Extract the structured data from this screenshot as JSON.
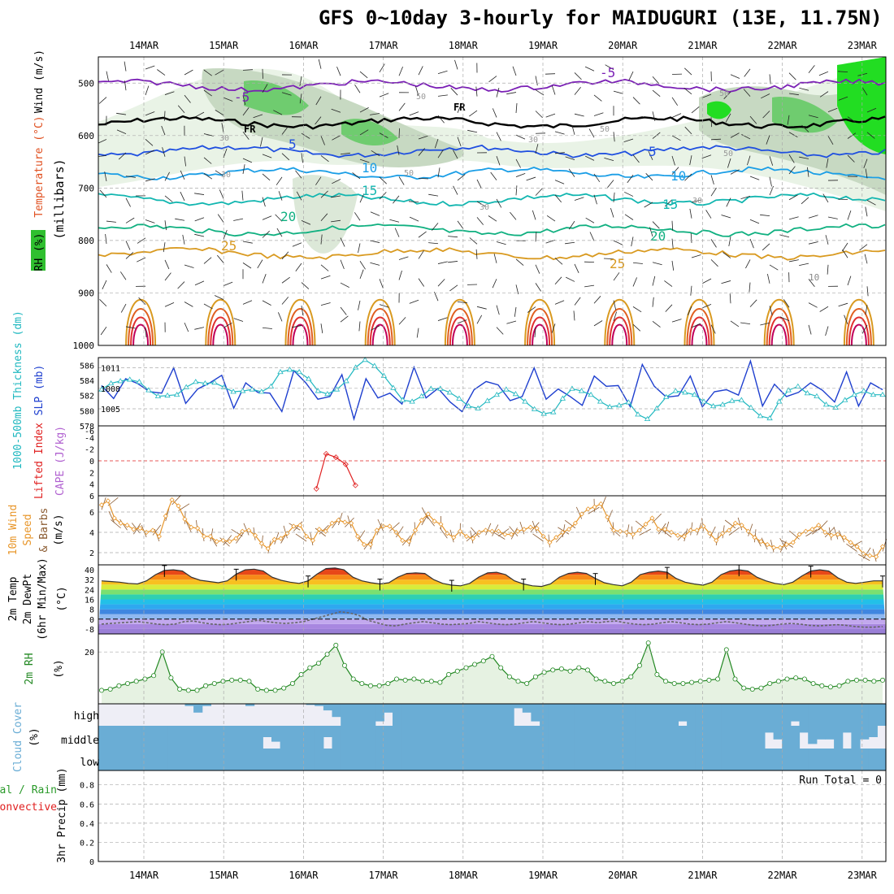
{
  "title": "GFS 0~10day 3-hourly for MAIDUGURI (13E, 11.75N)",
  "dates": [
    "14MAR",
    "15MAR",
    "16MAR",
    "17MAR",
    "18MAR",
    "19MAR",
    "20MAR",
    "21MAR",
    "22MAR",
    "23MAR"
  ],
  "panel_labels": {
    "p1_wind": "Wind (m/s)",
    "p1_temp": "Temperature (°C)",
    "p1_rh": "RH (%)",
    "p1_mb": "(millibars)",
    "p2_thick": "1000-500mb Thickness (dm)",
    "p2_slp": "SLP (mb)",
    "p3_li": "Lifted Index",
    "p3_cape": "CAPE (J/kg)",
    "p4_10m": "10m Wind",
    "p4_speed": "Speed",
    "p4_barbs": "& Barbs",
    "p4_unit": "(m/s)",
    "p5_temp": "2m Temp",
    "p5_dew": "2m DewPt",
    "p5_minmax": "(6hr Min/Max)",
    "p5_unit": "(°C)",
    "p6_rh": "2m RH",
    "p6_unit": "(%)",
    "p7_cloud": "Cloud Cover",
    "p7_unit": "(%)",
    "p8_total": "Total / Rain",
    "p8_conv": "Convective",
    "p8_precip": "3hr Precip (mm)"
  },
  "cloud_levels": [
    "high",
    "middle",
    "low"
  ],
  "run_total": "Run Total = 0",
  "colors": {
    "slp": "#1e3fcf",
    "thickness": "#20b8c0",
    "wind_speed": "#e8962a",
    "rh2m": "#228822",
    "rh_fill": "#e6f2e2",
    "cloud": "#6aadd5",
    "cloud_bg": "#eeeef6",
    "lifted_index": "#e02020",
    "temp_line": "#555555"
  },
  "chart_data": [
    {
      "type": "contour",
      "name": "vertical cross-section",
      "y_axis": {
        "label": "millibars",
        "ticks": [
          500,
          600,
          700,
          800,
          900,
          1000
        ],
        "range": [
          450,
          1000
        ]
      },
      "temperature_labels": [
        "-5",
        "-5",
        "5",
        "5",
        "10",
        "10",
        "15",
        "15",
        "20",
        "20",
        "25",
        "25",
        "10"
      ],
      "rh_labels": [
        "50",
        "50",
        "50",
        "50",
        "50",
        "30",
        "30",
        "30",
        "30",
        "30"
      ],
      "freezing_label": "FR",
      "isotherm_levels_mb": {
        "-5": 505,
        "0": 575,
        "5": 630,
        "10": 672,
        "15": 722,
        "20": 780,
        "25": 825
      }
    },
    {
      "type": "line",
      "name": "SLP and thickness",
      "thickness_axis": {
        "label": "1000-500mb Thickness (dm)",
        "ticks": [
          578,
          580,
          582,
          584,
          586
        ],
        "range": [
          578,
          587
        ]
      },
      "slp_axis": {
        "label": "SLP (mb)",
        "ticks": [
          1005,
          1008,
          1011
        ],
        "range": [
          1002.5,
          1012.5
        ]
      },
      "thickness": [
        582.8,
        583.6,
        583.9,
        584.1,
        583.8,
        582.7,
        581.9,
        582.0,
        582.1,
        583.1,
        583.8,
        583.6,
        583.7,
        583.1,
        582.5,
        582.6,
        582.8,
        582.5,
        583.2,
        585.1,
        585.4,
        585.1,
        584.2,
        582.6,
        582.2,
        582.8,
        583.9,
        585.7,
        586.7,
        585.9,
        584.6,
        583.0,
        581.4,
        581.2,
        581.9,
        582.9,
        582.9,
        582.4,
        581.6,
        580.6,
        580.3,
        581.3,
        582.1,
        582.8,
        582.2,
        581.2,
        580.2,
        579.6,
        579.8,
        581.6,
        582.9,
        582.6,
        582.1,
        581.2,
        580.5,
        580.7,
        581.1,
        579.5,
        578.9,
        580.3,
        581.8,
        582.6,
        582.4,
        582.1,
        581.2,
        580.6,
        580.8,
        581.3,
        581.4,
        580.4,
        579.3,
        579.0,
        581.2,
        582.7,
        583.2,
        582.3,
        581.9,
        580.8,
        580.4,
        581.4,
        582.1,
        582.6,
        582.1,
        582.1
      ],
      "slp": [
        1008.4,
        1006.5,
        1009.4,
        1008.7,
        1007.5,
        1007.3,
        1011.0,
        1005.8,
        1007.9,
        1008.8,
        1009.9,
        1005.1,
        1008.8,
        1007.4,
        1007.3,
        1004.6,
        1010.6,
        1008.8,
        1006.4,
        1006.8,
        1010.0,
        1003.5,
        1009.4,
        1006.6,
        1007.3,
        1005.7,
        1011.1,
        1006.6,
        1008.0,
        1006.0,
        1004.6,
        1007.8,
        1009.0,
        1008.5,
        1006.2,
        1006.8,
        1011.0,
        1006.4,
        1007.9,
        1006.8,
        1005.5,
        1009.8,
        1008.3,
        1008.4,
        1005.3,
        1011.5,
        1008.3,
        1006.7,
        1006.9,
        1009.8,
        1005.3,
        1007.5,
        1007.8,
        1007.0,
        1012.0,
        1005.4,
        1008.6,
        1006.8,
        1007.4,
        1008.8,
        1007.7,
        1006.0,
        1010.4,
        1005.4,
        1008.8,
        1007.8
      ]
    },
    {
      "type": "line",
      "name": "Lifted index and CAPE",
      "y_axis": {
        "label": "Lifted Index",
        "ticks": [
          -4,
          -2,
          0,
          2,
          4,
          6
        ],
        "range": [
          -6,
          6
        ]
      },
      "lifted_index": [
        null,
        null,
        null,
        null,
        null,
        null,
        null,
        null,
        null,
        null,
        null,
        null,
        null,
        null,
        null,
        null,
        null,
        null,
        null,
        null,
        null,
        null,
        4.8,
        -1.2,
        -0.6,
        0.6,
        4.2,
        null,
        null,
        null,
        null,
        null,
        null,
        null,
        null,
        null,
        null,
        null,
        null,
        null,
        null,
        null,
        null,
        null,
        null,
        null,
        null,
        null,
        null,
        null,
        null,
        null,
        null,
        null,
        null,
        null,
        null,
        null,
        null,
        null,
        null,
        null,
        null,
        null,
        null,
        null,
        null,
        null,
        null,
        null,
        null,
        null,
        null,
        null,
        null,
        null,
        null,
        null,
        null,
        null,
        null
      ]
    },
    {
      "type": "line",
      "name": "10m wind speed",
      "y_axis": {
        "label": "(m/s)",
        "ticks": [
          2,
          4,
          6
        ],
        "range": [
          0.8,
          7.6
        ]
      },
      "wind_speed": [
        6.7,
        7.1,
        5.4,
        4.9,
        4.7,
        4.3,
        4.4,
        4.0,
        4.2,
        3.6,
        5.6,
        7.2,
        6.6,
        5.3,
        4.5,
        4.4,
        3.6,
        3.6,
        3.1,
        3.2,
        3.1,
        3.4,
        4.1,
        4.2,
        3.7,
        2.9,
        2.4,
        3.3,
        3.4,
        3.9,
        4.6,
        4.7,
        3.6,
        3.2,
        4.3,
        4.1,
        4.9,
        5.2,
        5.0,
        4.9,
        3.6,
        2.8,
        2.8,
        4.2,
        4.6,
        4.6,
        4.0,
        3.2,
        3.1,
        4.2,
        5.2,
        5.8,
        5.1,
        4.8,
        3.9,
        3.5,
        4.1,
        3.6,
        3.4,
        4.0,
        4.2,
        4.1,
        4.1,
        3.8,
        3.8,
        4.1,
        4.3,
        4.5,
        4.4,
        3.6,
        3.0,
        3.5,
        4.0,
        4.3,
        4.9,
        5.8,
        6.3,
        6.5,
        6.8,
        5.5,
        4.2,
        4.1,
        4.0,
        3.8,
        4.2,
        4.8,
        5.4,
        4.3,
        4.3,
        4.0,
        3.7,
        3.6,
        4.2,
        4.2,
        4.6,
        3.9,
        3.2,
        3.9,
        4.2,
        4.9,
        4.7,
        4.1,
        3.5,
        3.1,
        2.8,
        2.5,
        2.5,
        2.8,
        3.0,
        3.8,
        4.1,
        4.3,
        4.7,
        4.0,
        3.7,
        3.8,
        3.5,
        3.0,
        2.6,
        1.9,
        1.7,
        1.6,
        2.6
      ]
    },
    {
      "type": "area",
      "name": "2m temperature and dewpoint",
      "y_axis": {
        "label": "(°C)",
        "ticks": [
          40,
          32,
          24,
          16,
          8,
          0,
          -8
        ],
        "range": [
          -12,
          44
        ]
      },
      "temperature": [
        31,
        30.5,
        30,
        29,
        28.5,
        31,
        36,
        39.5,
        40,
        39,
        34,
        31.5,
        30.5,
        29.5,
        31,
        36.5,
        40,
        40.5,
        39,
        34,
        31.5,
        30,
        29,
        31,
        36.5,
        41,
        41.5,
        40,
        34,
        31,
        29.5,
        28.5,
        29.5,
        34,
        37,
        37.5,
        37,
        32,
        29,
        27.5,
        27,
        29,
        34,
        37.5,
        38,
        36,
        31,
        28.5,
        27,
        26.5,
        28.5,
        34,
        37,
        38,
        37,
        33,
        29.5,
        28,
        27,
        30,
        36,
        38,
        39,
        38,
        33,
        30,
        28.5,
        27.5,
        30,
        36,
        39,
        40,
        39,
        34,
        31,
        29,
        28,
        30,
        35,
        39,
        40,
        39,
        33.5,
        30,
        29,
        30,
        31,
        31
      ],
      "dewpoint": [
        -4,
        -3.5,
        -3,
        -2.5,
        -2,
        -3,
        -4,
        -4.5,
        -4,
        -2,
        -1.5,
        -3,
        -4,
        -4.5,
        -4,
        -3,
        -2,
        -1,
        -2,
        -3,
        -3.5,
        -3,
        -2,
        0,
        2,
        4,
        6,
        5,
        3,
        -1,
        -3,
        -5,
        -5.5,
        -4,
        -3,
        -2,
        -3,
        -4,
        -4.5,
        -4,
        -3.5,
        -2,
        -3,
        -4,
        -4.5,
        -4,
        -3,
        -2,
        -3,
        -4,
        -4.5,
        -4,
        -3,
        -2,
        -3,
        -2,
        -1.5,
        -3,
        -4,
        -4.5,
        -4,
        -3,
        -2,
        -3,
        -4,
        -4.5,
        -4,
        -3,
        -2,
        -3,
        -4,
        -5,
        -5.5,
        -5,
        -4,
        -3.5,
        -4,
        -5,
        -5.5,
        -5,
        -4.5,
        -5,
        -6,
        -6.5,
        -6.5,
        -6
      ]
    },
    {
      "type": "line",
      "name": "2m relative humidity",
      "y_axis": {
        "label": "(%)",
        "ticks": [
          20
        ],
        "range": [
          -3,
          28
        ]
      },
      "rh": [
        3,
        3.5,
        5,
        6,
        7,
        8,
        9.5,
        20,
        8.5,
        3.5,
        3,
        3,
        5,
        6,
        7,
        7.5,
        7.5,
        7,
        3.5,
        3,
        3,
        4,
        6,
        10,
        13,
        15,
        19,
        23,
        14,
        8,
        6,
        5,
        5,
        6,
        8,
        7.5,
        8,
        7,
        7,
        6.5,
        10,
        11.5,
        13,
        14.5,
        16,
        18,
        13,
        9,
        7,
        6,
        9,
        11,
        12,
        12.5,
        11.5,
        13,
        12,
        8,
        7,
        6,
        7,
        9,
        14,
        24,
        10,
        7,
        6,
        6,
        6.5,
        7,
        7.5,
        8,
        21,
        8,
        4,
        3.5,
        4,
        6,
        7,
        8,
        8.5,
        8,
        6,
        5,
        4.5,
        5,
        7,
        7.5,
        7.5,
        7,
        7.5
      ]
    },
    {
      "type": "bar",
      "name": "cloud cover",
      "levels": [
        "high",
        "middle",
        "low"
      ],
      "high_pct": [
        0,
        0,
        0,
        0,
        0,
        0,
        0,
        0,
        0,
        0,
        10,
        40,
        10,
        0,
        0,
        0,
        0,
        10,
        0,
        0,
        0,
        0,
        0,
        0,
        5,
        10,
        30,
        60,
        100,
        100,
        100,
        100,
        80,
        40,
        100,
        100,
        100,
        100,
        100,
        100,
        100,
        100,
        100,
        100,
        100,
        100,
        100,
        100,
        20,
        40,
        80,
        100,
        100,
        100,
        100,
        100,
        100,
        100,
        100,
        100,
        100,
        100,
        100,
        100,
        100,
        100,
        100,
        80,
        100,
        100,
        100,
        100,
        100,
        100,
        100,
        100,
        100,
        100,
        100,
        100,
        80,
        100,
        100,
        100,
        100,
        100,
        100,
        100,
        100,
        100,
        100
      ],
      "middle_pct": [
        100,
        100,
        100,
        100,
        100,
        100,
        100,
        100,
        100,
        100,
        100,
        100,
        100,
        100,
        100,
        100,
        100,
        100,
        100,
        50,
        70,
        100,
        100,
        100,
        100,
        100,
        50,
        100,
        100,
        100,
        100,
        100,
        100,
        100,
        100,
        100,
        100,
        100,
        100,
        100,
        100,
        100,
        100,
        100,
        100,
        100,
        100,
        100,
        100,
        100,
        100,
        100,
        100,
        100,
        100,
        100,
        100,
        100,
        100,
        100,
        100,
        100,
        100,
        100,
        100,
        100,
        100,
        100,
        100,
        100,
        100,
        100,
        100,
        100,
        100,
        100,
        100,
        30,
        60,
        100,
        100,
        30,
        80,
        60,
        60,
        100,
        30,
        100,
        60,
        50,
        0
      ],
      "low_pct": [
        100,
        100,
        100,
        100,
        100,
        100,
        100,
        100,
        100,
        100,
        100,
        100,
        100,
        100,
        100,
        100,
        100,
        100,
        100,
        100,
        100,
        100,
        100,
        100,
        100,
        100,
        100,
        100,
        100,
        100,
        100,
        100,
        100,
        100,
        100,
        100,
        100,
        100,
        100,
        100,
        100,
        100,
        100,
        100,
        100,
        100,
        100,
        100,
        100,
        100,
        100,
        100,
        100,
        100,
        100,
        100,
        100,
        100,
        100,
        100,
        100,
        100,
        100,
        100,
        100,
        100,
        100,
        100,
        100,
        100,
        100,
        100,
        100,
        100,
        100,
        100,
        100,
        100,
        100,
        100,
        100,
        100,
        100,
        100,
        100,
        100,
        100,
        100,
        100,
        100,
        100
      ]
    },
    {
      "type": "bar",
      "name": "3hr precipitation",
      "y_axis": {
        "label": "3hr Precip (mm)",
        "ticks": [
          0,
          0.2,
          0.4,
          0.6,
          0.8
        ],
        "range": [
          0,
          0.95
        ]
      },
      "precip": [],
      "run_total_mm": 0
    }
  ]
}
